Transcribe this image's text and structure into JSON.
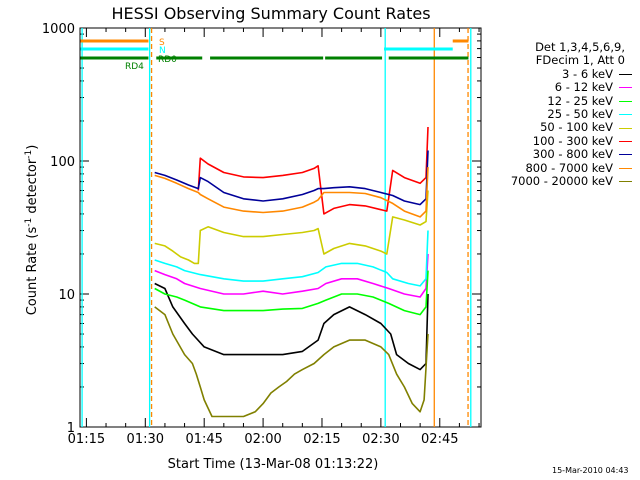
{
  "chart_data": {
    "type": "line",
    "title": "HESSI Observing Summary Count Rates",
    "xlabel": "Start Time (13-Mar-08 01:13:22)",
    "ylabel_prefix": "Count Rate (s",
    "ylabel_sup1": "-1",
    "ylabel_mid": " detector",
    "ylabel_sup2": "-1",
    "ylabel_suffix": ")",
    "y_scale": "log",
    "ylim": [
      1,
      1000
    ],
    "x_unit": "minutes of day",
    "xlim": [
      73.37,
      175.5
    ],
    "x_ticks": [
      {
        "value": 75,
        "label": "01:15"
      },
      {
        "value": 90,
        "label": "01:30"
      },
      {
        "value": 105,
        "label": "01:45"
      },
      {
        "value": 120,
        "label": "02:00"
      },
      {
        "value": 135,
        "label": "02:15"
      },
      {
        "value": 150,
        "label": "02:30"
      },
      {
        "value": 165,
        "label": "02:45"
      }
    ],
    "y_ticks": [
      {
        "value": 1,
        "label": "1"
      },
      {
        "value": 10,
        "label": "10"
      },
      {
        "value": 100,
        "label": "100"
      },
      {
        "value": 1000,
        "label": "1000"
      }
    ],
    "legend_header": [
      "Det 1,3,4,5,6,9,",
      "FDecim 1, Att 0"
    ],
    "series": [
      {
        "name": "3 - 6 keV",
        "color": "#000000",
        "points": [
          [
            92.4,
            12
          ],
          [
            95,
            11
          ],
          [
            97,
            8
          ],
          [
            100,
            6
          ],
          [
            102,
            5
          ],
          [
            105,
            4
          ],
          [
            110,
            3.5
          ],
          [
            115,
            3.5
          ],
          [
            120,
            3.5
          ],
          [
            125,
            3.5
          ],
          [
            130,
            3.7
          ],
          [
            134,
            4.5
          ],
          [
            135.5,
            6
          ],
          [
            138,
            7
          ],
          [
            142,
            8
          ],
          [
            146,
            7
          ],
          [
            150,
            6
          ],
          [
            152.5,
            5
          ],
          [
            154,
            3.5
          ],
          [
            157,
            3
          ],
          [
            160,
            2.7
          ],
          [
            161.5,
            3
          ],
          [
            162,
            10
          ]
        ]
      },
      {
        "name": "6 - 12 keV",
        "color": "#ff00ff",
        "points": [
          [
            92.4,
            15
          ],
          [
            95,
            14
          ],
          [
            98,
            13
          ],
          [
            100,
            12
          ],
          [
            104,
            11
          ],
          [
            110,
            10
          ],
          [
            115,
            10
          ],
          [
            120,
            10.5
          ],
          [
            125,
            10
          ],
          [
            130,
            10.5
          ],
          [
            134,
            11
          ],
          [
            136,
            12
          ],
          [
            140,
            13
          ],
          [
            144,
            13
          ],
          [
            148,
            12
          ],
          [
            152,
            11
          ],
          [
            156,
            10
          ],
          [
            160,
            9.5
          ],
          [
            161.5,
            11
          ],
          [
            162,
            20
          ]
        ]
      },
      {
        "name": "12 - 25 keV",
        "color": "#00ff00",
        "points": [
          [
            92.4,
            11
          ],
          [
            95,
            10
          ],
          [
            98,
            9.5
          ],
          [
            100,
            9
          ],
          [
            104,
            8
          ],
          [
            110,
            7.5
          ],
          [
            115,
            7.5
          ],
          [
            120,
            7.5
          ],
          [
            125,
            7.7
          ],
          [
            130,
            7.8
          ],
          [
            134,
            8.5
          ],
          [
            136,
            9
          ],
          [
            140,
            10
          ],
          [
            144,
            10
          ],
          [
            148,
            9.5
          ],
          [
            152,
            8.5
          ],
          [
            156,
            7.5
          ],
          [
            160,
            7
          ],
          [
            161.5,
            8
          ],
          [
            162,
            15
          ]
        ]
      },
      {
        "name": "25 - 50 keV",
        "color": "#00ffff",
        "points": [
          [
            92.4,
            18
          ],
          [
            95,
            17
          ],
          [
            98,
            16
          ],
          [
            100,
            15
          ],
          [
            104,
            14
          ],
          [
            110,
            13
          ],
          [
            115,
            12.5
          ],
          [
            120,
            12.5
          ],
          [
            125,
            13
          ],
          [
            130,
            13.5
          ],
          [
            134,
            14.5
          ],
          [
            136,
            16
          ],
          [
            140,
            17
          ],
          [
            144,
            17
          ],
          [
            148,
            16
          ],
          [
            151.5,
            14.5
          ],
          [
            153,
            13
          ],
          [
            157,
            12
          ],
          [
            160,
            11.5
          ],
          [
            161.5,
            13
          ],
          [
            162,
            30
          ]
        ]
      },
      {
        "name": "50 - 100 keV",
        "color": "#cccc00",
        "points": [
          [
            92.4,
            24
          ],
          [
            95,
            23
          ],
          [
            97,
            21
          ],
          [
            99,
            19
          ],
          [
            101,
            18
          ],
          [
            102.5,
            17
          ],
          [
            103.5,
            17
          ],
          [
            104,
            30
          ],
          [
            106,
            32
          ],
          [
            110,
            29
          ],
          [
            115,
            27
          ],
          [
            120,
            27
          ],
          [
            125,
            28
          ],
          [
            130,
            29
          ],
          [
            133,
            30
          ],
          [
            134,
            31
          ],
          [
            135.5,
            20
          ],
          [
            138,
            22
          ],
          [
            142,
            24
          ],
          [
            146,
            23
          ],
          [
            150,
            21
          ],
          [
            151.5,
            20
          ],
          [
            153,
            38
          ],
          [
            156,
            36
          ],
          [
            160,
            33
          ],
          [
            161.5,
            35
          ],
          [
            162,
            60
          ]
        ]
      },
      {
        "name": "100 - 300 keV",
        "color": "#ff0000",
        "points": [
          [
            103.5,
            60
          ],
          [
            104,
            105
          ],
          [
            106,
            95
          ],
          [
            110,
            82
          ],
          [
            115,
            76
          ],
          [
            120,
            75
          ],
          [
            125,
            78
          ],
          [
            130,
            82
          ],
          [
            133,
            88
          ],
          [
            134,
            92
          ],
          [
            135.5,
            40
          ],
          [
            138,
            44
          ],
          [
            142,
            47
          ],
          [
            146,
            46
          ],
          [
            150,
            43
          ],
          [
            151.5,
            42
          ],
          [
            153,
            85
          ],
          [
            156,
            75
          ],
          [
            160,
            68
          ],
          [
            161.5,
            75
          ],
          [
            162,
            180
          ]
        ]
      },
      {
        "name": "300 - 800 keV",
        "color": "#000099",
        "points": [
          [
            92.4,
            82
          ],
          [
            95,
            78
          ],
          [
            98,
            72
          ],
          [
            101,
            66
          ],
          [
            103.5,
            62
          ],
          [
            104,
            75
          ],
          [
            106,
            70
          ],
          [
            110,
            58
          ],
          [
            115,
            52
          ],
          [
            120,
            50
          ],
          [
            125,
            52
          ],
          [
            130,
            56
          ],
          [
            133,
            60
          ],
          [
            134,
            62
          ],
          [
            135.5,
            62
          ],
          [
            138,
            63
          ],
          [
            142,
            64
          ],
          [
            146,
            62
          ],
          [
            150,
            58
          ],
          [
            153,
            55
          ],
          [
            156,
            50
          ],
          [
            160,
            47
          ],
          [
            161.5,
            52
          ],
          [
            162,
            120
          ]
        ]
      },
      {
        "name": "800 - 7000 keV",
        "color": "#ff8800",
        "points": [
          [
            92.4,
            78
          ],
          [
            95,
            74
          ],
          [
            98,
            68
          ],
          [
            101,
            62
          ],
          [
            103.5,
            58
          ],
          [
            104,
            56
          ],
          [
            106,
            52
          ],
          [
            110,
            45
          ],
          [
            115,
            42
          ],
          [
            120,
            41
          ],
          [
            125,
            42
          ],
          [
            130,
            45
          ],
          [
            133,
            49
          ],
          [
            134,
            51
          ],
          [
            135.5,
            58
          ],
          [
            138,
            58
          ],
          [
            142,
            58
          ],
          [
            146,
            57
          ],
          [
            150,
            53
          ],
          [
            153,
            48
          ],
          [
            156,
            42
          ],
          [
            160,
            38
          ],
          [
            161.5,
            42
          ],
          [
            162,
            90
          ]
        ]
      },
      {
        "name": "7000 - 20000 keV",
        "color": "#808000",
        "points": [
          [
            92.4,
            8
          ],
          [
            95,
            7
          ],
          [
            97,
            5
          ],
          [
            100,
            3.5
          ],
          [
            102,
            3
          ],
          [
            103,
            2.5
          ],
          [
            104,
            2
          ],
          [
            105,
            1.6
          ],
          [
            107,
            1.2
          ],
          [
            110,
            1.2
          ],
          [
            115,
            1.2
          ],
          [
            118,
            1.3
          ],
          [
            120,
            1.5
          ],
          [
            122,
            1.8
          ],
          [
            124,
            2
          ],
          [
            126,
            2.2
          ],
          [
            128,
            2.5
          ],
          [
            130,
            2.7
          ],
          [
            133,
            3
          ],
          [
            135.5,
            3.5
          ],
          [
            138,
            4
          ],
          [
            142,
            4.5
          ],
          [
            146,
            4.5
          ],
          [
            150,
            4
          ],
          [
            152,
            3.5
          ],
          [
            154,
            2.5
          ],
          [
            156,
            2
          ],
          [
            158,
            1.5
          ],
          [
            160,
            1.3
          ],
          [
            161,
            1.6
          ],
          [
            162,
            5
          ]
        ]
      }
    ],
    "state_bars": [
      {
        "label": "S",
        "color": "#ff8800",
        "segments": [
          [
            73.5,
            90.8
          ],
          [
            168.3,
            172.3
          ]
        ]
      },
      {
        "label": "N",
        "color": "#00ffff",
        "segments": [
          [
            73.5,
            90.8
          ],
          [
            150.8,
            168.3
          ]
        ]
      },
      {
        "label": "RD0",
        "color": "#008000",
        "segments": [
          [
            92.8,
            104.5
          ],
          [
            106.5,
            135.3
          ],
          [
            135.8,
            150.3
          ],
          [
            152,
            172.3
          ]
        ]
      },
      {
        "label": "RD4",
        "color": "#008000",
        "segments": [
          [
            73.5,
            90.8
          ]
        ]
      }
    ],
    "vertical_lines": [
      {
        "x": 73.9,
        "color": "#00ffff",
        "style": "solid"
      },
      {
        "x": 91.1,
        "color": "#00ffff",
        "style": "solid"
      },
      {
        "x": 91.6,
        "color": "#ff8800",
        "style": "dashed"
      },
      {
        "x": 151.1,
        "color": "#00ffff",
        "style": "solid"
      },
      {
        "x": 163.6,
        "color": "#ff8800",
        "style": "solid"
      },
      {
        "x": 172.2,
        "color": "#ff8800",
        "style": "dashed"
      },
      {
        "x": 172.9,
        "color": "#00ffff",
        "style": "solid"
      }
    ],
    "grid": false,
    "legend_position": "right"
  },
  "footer_timestamp": "15-Mar-2010 04:43"
}
